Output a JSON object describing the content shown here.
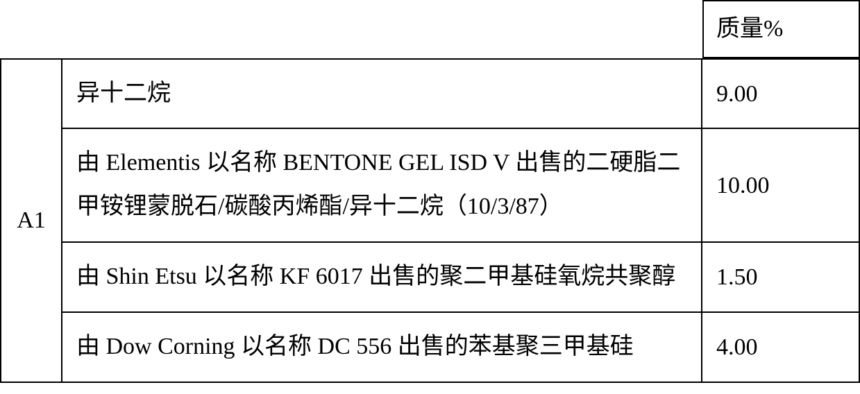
{
  "table": {
    "header_label": "质量%",
    "group_label": "A1",
    "rows": [
      {
        "description": "异十二烷",
        "value": "9.00"
      },
      {
        "description": "由 Elementis 以名称 BENTONE GEL ISD V 出售的二硬脂二甲铵锂蒙脱石/碳酸丙烯酯/异十二烷（10/3/87）",
        "value": "10.00"
      },
      {
        "description": "由 Shin Etsu 以名称 KF 6017 出售的聚二甲基硅氧烷共聚醇",
        "value": "1.50"
      },
      {
        "description": "由 Dow Corning 以名称 DC 556 出售的苯基聚三甲基硅",
        "value": "4.00"
      }
    ]
  },
  "styling": {
    "border_color": "#000000",
    "background_color": "#ffffff",
    "font_size_pt": 26,
    "font_family": "SimSun",
    "cell_padding": "16px 18px"
  }
}
